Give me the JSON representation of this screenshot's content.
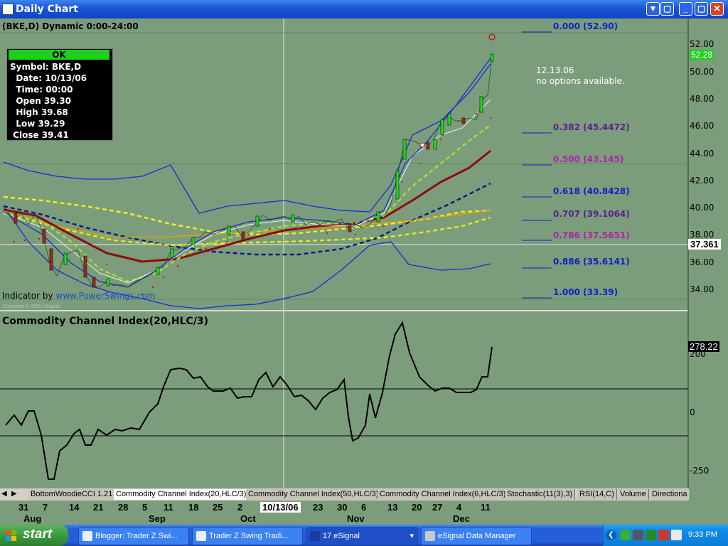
{
  "window": {
    "title": "Daily Chart",
    "buttons": {
      "down": "▼",
      "restore": "▢",
      "minimize": "_",
      "maximize": "▢",
      "close": "✕"
    }
  },
  "chart": {
    "header": "(BKE,D) Dynamic 0:00-24:00",
    "infobox": {
      "status": "OK",
      "rows": [
        "Symbol: BKE,D",
        "  Date: 10/13/06",
        "  Time: 00:00",
        "  Open 39.30",
        "  High 39.68",
        "  Low 39.29",
        " Close 39.41"
      ]
    },
    "price_axis_labels": [
      "52.00",
      "50.00",
      "48.00",
      "46.00",
      "44.00",
      "42.00",
      "40.00",
      "38.00",
      "36.00",
      "34.00"
    ],
    "cursor_price": "37.361",
    "last_price": "52.28",
    "fib_levels": [
      {
        "label": "0.000 (52.90)",
        "color": "#1020c8"
      },
      {
        "label": "0.382 (45.4472)",
        "color": "#5c1f8a"
      },
      {
        "label": "0.500 (43.145)",
        "color": "#b020b0"
      },
      {
        "label": "0.618 (40.8428)",
        "color": "#1020c8"
      },
      {
        "label": "0.707 (39.1064)",
        "color": "#5c1f8a"
      },
      {
        "label": "0.786 (37.5651)",
        "color": "#b020b0"
      },
      {
        "label": "0.886 (35.6141)",
        "color": "#1020c8"
      },
      {
        "label": "1.000 (33.39)",
        "color": "#1020c8"
      }
    ],
    "note_line1": "12.13.06",
    "note_line2": "no options available.",
    "indicator_credit": "Indicator by ",
    "indicator_link": "www.PowerSwings.com",
    "copyright": "Copyright © 2005 eSignal"
  },
  "cci": {
    "title": "Commodity Channel Index(20,HLC/3)",
    "axis_labels": [
      "200",
      "0",
      "-250"
    ],
    "current_value": "278.22"
  },
  "tabs": [
    "BottomWoodieCCI 1.21",
    "Commodity Channel Index(20,HLC/3)",
    "Commodity Channel Index(50,HLC/3)",
    "Commodity Channel Index(6,HLC/3)",
    "Stochastic(11(3),3)",
    "RSI(14,C)",
    "Volume",
    "Directiona"
  ],
  "date_axis": {
    "days": [
      "31",
      "7",
      "14",
      "21",
      "28",
      "5",
      "11",
      "18",
      "25",
      "2",
      "10/13/06",
      "23",
      "30",
      "6",
      "13",
      "20",
      "27",
      "4",
      "11"
    ],
    "months": [
      "Aug",
      "Sep",
      "Oct",
      "Nov",
      "Dec"
    ],
    "cursor_date": "10/13/06"
  },
  "taskbar": {
    "start": "start",
    "tasks": [
      "Blogger: Trader Z Swi...",
      "Trader Z Swing Tradi...",
      "17 eSignal",
      "eSignal Data Manager"
    ],
    "clock": "9:33 PM"
  }
}
